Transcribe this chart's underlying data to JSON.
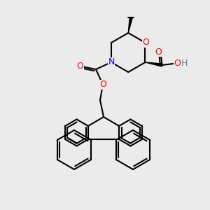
{
  "background_color": "#ebebeb",
  "bond_color": "#000000",
  "bond_width": 1.5,
  "atom_colors": {
    "O": "#ff0000",
    "N": "#0000ff",
    "C": "#000000",
    "H": "#4a9090"
  },
  "font_size_atom": 9,
  "font_size_methyl": 8
}
